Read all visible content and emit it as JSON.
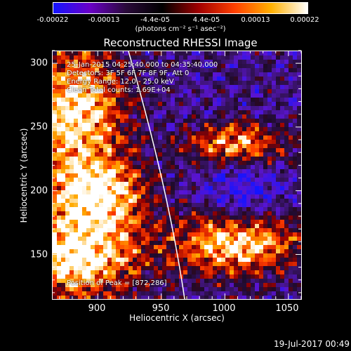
{
  "colorbar": {
    "ticks": [
      "-0.00022",
      "-0.00013",
      "-4.4e-05",
      "4.4e-05",
      "0.00013",
      "0.00022"
    ],
    "unit": "(photons cm⁻² s⁻¹ asec⁻²)",
    "colors": [
      "#1414ff",
      "#6a00c8",
      "#2a0a3a",
      "#000000",
      "#a00000",
      "#ff4000",
      "#ffb000",
      "#ffffff"
    ]
  },
  "chart_data": {
    "type": "heatmap",
    "title": "Reconstructed RHESSI Image",
    "xlabel": "Heliocentric X (arcsec)",
    "ylabel": "Heliocentric Y (arcsec)",
    "xlim": [
      864,
      1060
    ],
    "ylim": [
      115,
      310
    ],
    "xticks": [
      "900",
      "950",
      "1000",
      "1050"
    ],
    "yticks": [
      "150",
      "200",
      "250",
      "300"
    ],
    "annotations": [
      "25-Jan-2015 04:25:40.000 to 04:35:40.000",
      "Detectors: 3F 5F 6F 7F 8F 9F, Att 0",
      "Energy Range: 12.0 - 25.0 keV",
      "Clean    Total counts: 1.69E+04"
    ],
    "peak_text": "Position of Peak = [872,286]",
    "limb_color": "#ffffff"
  },
  "timestamp": "19-Jul-2017 00:49"
}
